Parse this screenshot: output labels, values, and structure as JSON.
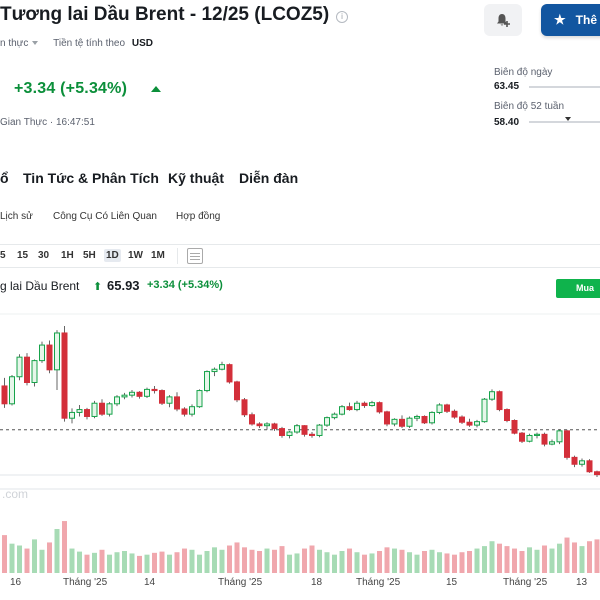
{
  "header": {
    "title": "Tương lai Dầu Brent - 12/25 (LCOZ5)",
    "info_icon": "info-icon",
    "data_type": "n thực",
    "currency_label": "Tiền tệ tính theo",
    "currency_value": "USD",
    "alert_icon": "bell-plus-icon",
    "watchlist_label": "Thê"
  },
  "quote": {
    "change": "+3.34 (+5.34%)",
    "direction_icon": "up-triangle-icon",
    "status_time": "Gian Thực · 16:47:51"
  },
  "ranges": {
    "day_label": "Biên độ ngày",
    "day_low": "63.45",
    "week52_label": "Biên độ 52 tuần",
    "week52_low": "58.40",
    "week52_position": 0.55
  },
  "nav": {
    "items": [
      "ổ",
      "Tin Tức & Phân Tích",
      "Kỹ thuật",
      "Diễn đàn"
    ],
    "sub_items": [
      "Lịch sử",
      "Công Cụ Có Liên Quan",
      "Hợp đồng"
    ]
  },
  "timeframes": {
    "items": [
      "5",
      "15",
      "30",
      "1H",
      "5H",
      "1D",
      "1W",
      "1M"
    ],
    "active": "1D"
  },
  "chart": {
    "instrument": "g lai Dầu Brent",
    "price": "65.93",
    "change": "+3.34 (+5.34%)",
    "buy_label": "Mua",
    "watermark": ".com",
    "x_labels": [
      "16",
      "Tháng '25",
      "14",
      "Tháng '25",
      "18",
      "Tháng '25",
      "15",
      "Tháng '25",
      "13"
    ]
  },
  "colors": {
    "up": "#0b8f3a",
    "candle_up": "#16a34a",
    "candle_down": "#d32f3a",
    "primary": "#1256a0",
    "buy": "#0fb34c"
  },
  "chart_data": {
    "type": "candlestick",
    "ohlc": [
      [
        74.2,
        75.6,
        70.4,
        71.1
      ],
      [
        71.1,
        76.1,
        70.8,
        75.8
      ],
      [
        75.8,
        79.7,
        75.2,
        79.2
      ],
      [
        79.2,
        79.9,
        74.3,
        74.8
      ],
      [
        74.8,
        78.8,
        74.1,
        78.6
      ],
      [
        78.6,
        81.9,
        78.2,
        81.3
      ],
      [
        81.3,
        82.1,
        76.4,
        77.0
      ],
      [
        77.0,
        83.9,
        73.5,
        83.4
      ],
      [
        83.4,
        84.6,
        68.0,
        68.6
      ],
      [
        68.6,
        70.3,
        67.7,
        69.6
      ],
      [
        69.6,
        70.9,
        68.9,
        70.1
      ],
      [
        70.1,
        70.4,
        68.4,
        68.9
      ],
      [
        68.9,
        71.6,
        68.6,
        71.2
      ],
      [
        71.2,
        71.9,
        69.0,
        69.3
      ],
      [
        69.3,
        71.4,
        68.9,
        71.1
      ],
      [
        71.1,
        72.6,
        70.7,
        72.3
      ],
      [
        72.3,
        73.0,
        71.9,
        72.6
      ],
      [
        72.6,
        73.5,
        72.2,
        73.1
      ],
      [
        73.1,
        73.3,
        72.0,
        72.4
      ],
      [
        72.4,
        73.9,
        72.1,
        73.6
      ],
      [
        73.6,
        74.2,
        72.9,
        73.4
      ],
      [
        73.4,
        73.6,
        70.9,
        71.2
      ],
      [
        71.2,
        72.6,
        70.5,
        72.3
      ],
      [
        72.3,
        73.1,
        69.8,
        70.2
      ],
      [
        70.2,
        70.5,
        68.9,
        69.3
      ],
      [
        69.3,
        71.0,
        68.9,
        70.6
      ],
      [
        70.6,
        73.6,
        70.4,
        73.4
      ],
      [
        73.4,
        76.9,
        73.1,
        76.7
      ],
      [
        76.7,
        77.4,
        75.9,
        77.1
      ],
      [
        77.1,
        78.4,
        76.9,
        77.9
      ],
      [
        77.9,
        78.1,
        74.6,
        74.9
      ],
      [
        74.9,
        75.1,
        71.4,
        71.8
      ],
      [
        71.8,
        72.1,
        68.8,
        69.2
      ],
      [
        69.2,
        69.6,
        67.3,
        67.6
      ],
      [
        67.6,
        67.9,
        66.9,
        67.3
      ],
      [
        67.3,
        67.9,
        66.6,
        67.6
      ],
      [
        67.6,
        67.8,
        66.4,
        66.8
      ],
      [
        66.8,
        67.1,
        65.2,
        65.6
      ],
      [
        65.6,
        66.4,
        65.1,
        66.2
      ],
      [
        66.2,
        67.6,
        65.9,
        67.3
      ],
      [
        67.3,
        67.4,
        65.4,
        65.8
      ],
      [
        65.8,
        66.2,
        65.2,
        65.6
      ],
      [
        65.6,
        67.6,
        65.3,
        67.4
      ],
      [
        67.4,
        68.9,
        67.1,
        68.7
      ],
      [
        68.7,
        69.6,
        68.4,
        69.3
      ],
      [
        69.3,
        70.9,
        69.1,
        70.6
      ],
      [
        70.6,
        71.3,
        69.9,
        70.1
      ],
      [
        70.1,
        71.6,
        69.8,
        71.2
      ],
      [
        71.2,
        71.5,
        70.4,
        70.8
      ],
      [
        70.8,
        71.6,
        70.6,
        71.3
      ],
      [
        71.3,
        71.5,
        69.4,
        69.7
      ],
      [
        69.7,
        69.9,
        67.2,
        67.6
      ],
      [
        67.6,
        68.6,
        67.2,
        68.4
      ],
      [
        68.4,
        69.1,
        66.9,
        67.2
      ],
      [
        67.2,
        68.9,
        66.9,
        68.6
      ],
      [
        68.6,
        69.2,
        68.1,
        68.9
      ],
      [
        68.9,
        69.1,
        67.6,
        67.8
      ],
      [
        67.8,
        69.8,
        67.5,
        69.6
      ],
      [
        69.6,
        71.2,
        69.3,
        70.9
      ],
      [
        70.9,
        71.1,
        69.5,
        69.8
      ],
      [
        69.8,
        70.1,
        68.5,
        68.8
      ],
      [
        68.8,
        69.1,
        67.6,
        67.9
      ],
      [
        67.9,
        68.5,
        67.1,
        67.4
      ],
      [
        67.4,
        68.3,
        67.0,
        68.0
      ],
      [
        68.0,
        72.1,
        67.8,
        71.9
      ],
      [
        71.9,
        73.6,
        71.6,
        73.2
      ],
      [
        73.2,
        73.4,
        69.8,
        70.1
      ],
      [
        70.1,
        70.3,
        67.9,
        68.2
      ],
      [
        68.2,
        68.4,
        65.8,
        66.0
      ],
      [
        66.0,
        66.2,
        64.3,
        64.6
      ],
      [
        64.6,
        65.9,
        64.4,
        65.6
      ],
      [
        65.6,
        66.1,
        65.1,
        65.8
      ],
      [
        65.8,
        66.1,
        63.7,
        64.1
      ],
      [
        64.1,
        64.9,
        63.9,
        64.5
      ],
      [
        64.5,
        66.7,
        64.1,
        66.4
      ],
      [
        66.4,
        66.6,
        61.4,
        61.8
      ],
      [
        61.8,
        62.1,
        60.1,
        60.6
      ],
      [
        60.6,
        61.6,
        60.2,
        61.2
      ],
      [
        61.2,
        61.5,
        59.1,
        59.3
      ],
      [
        59.3,
        59.5,
        58.4,
        58.8
      ]
    ],
    "volume": [
      62,
      48,
      45,
      40,
      55,
      38,
      50,
      72,
      85,
      40,
      35,
      30,
      33,
      38,
      30,
      34,
      36,
      32,
      28,
      30,
      33,
      35,
      30,
      34,
      40,
      38,
      30,
      36,
      42,
      38,
      45,
      50,
      42,
      38,
      36,
      40,
      38,
      44,
      30,
      32,
      40,
      45,
      38,
      34,
      30,
      36,
      40,
      34,
      30,
      32,
      36,
      42,
      40,
      38,
      34,
      30,
      36,
      38,
      34,
      32,
      30,
      34,
      36,
      40,
      44,
      52,
      48,
      44,
      40,
      36,
      42,
      38,
      45,
      40,
      48,
      58,
      50,
      44,
      52,
      55
    ],
    "reference_line": 66.6,
    "ylim": [
      57.0,
      86.0
    ],
    "x_labels": [
      "16",
      "Tháng '25",
      "14",
      "Tháng '25",
      "18",
      "Tháng '25",
      "15",
      "Tháng '25",
      "13"
    ]
  }
}
